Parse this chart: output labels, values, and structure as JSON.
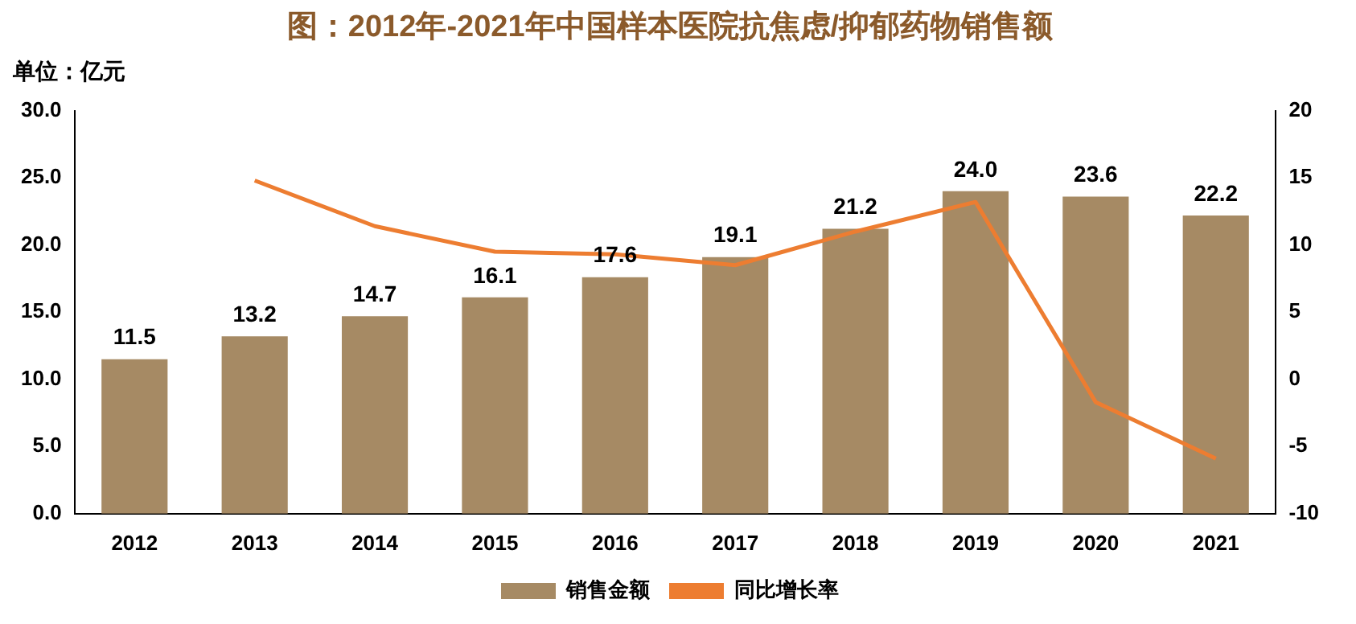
{
  "chart_data": {
    "type": "bar",
    "title": "图：2012年-2021年中国样本医院抗焦虑/抑郁药物销售额",
    "ylabel": "单位：亿元",
    "categories": [
      "2012",
      "2013",
      "2014",
      "2015",
      "2016",
      "2017",
      "2018",
      "2019",
      "2020",
      "2021"
    ],
    "series": [
      {
        "name": "销售金额",
        "color": "#a68a64",
        "values": [
          11.5,
          13.2,
          14.7,
          16.1,
          17.6,
          19.1,
          21.2,
          24.0,
          23.6,
          22.2
        ],
        "value_labels": [
          "11.5",
          "13.2",
          "14.7",
          "16.1",
          "17.6",
          "19.1",
          "21.2",
          "24.0",
          "23.6",
          "22.2"
        ]
      },
      {
        "name": "同比增长率",
        "type": "line",
        "axis": "y2",
        "color": "#ed7d31",
        "values": [
          null,
          14.8,
          11.4,
          9.5,
          9.3,
          8.5,
          11.0,
          13.2,
          -1.7,
          -5.9
        ]
      }
    ],
    "ylim": [
      0,
      30
    ],
    "yticks": [
      {
        "value": 0,
        "label": "0.0"
      },
      {
        "value": 5,
        "label": "5.0"
      },
      {
        "value": 10,
        "label": "10.0"
      },
      {
        "value": 15,
        "label": "15.0"
      },
      {
        "value": 20,
        "label": "20.0"
      },
      {
        "value": 25,
        "label": "25.0"
      },
      {
        "value": 30,
        "label": "30.0"
      }
    ],
    "y2lim": [
      -10,
      20
    ],
    "y2ticks": [
      -10,
      -5,
      0,
      5,
      10,
      15,
      20
    ],
    "grid": false,
    "legend": "bottom",
    "marker": "none",
    "line_style": "solid"
  }
}
